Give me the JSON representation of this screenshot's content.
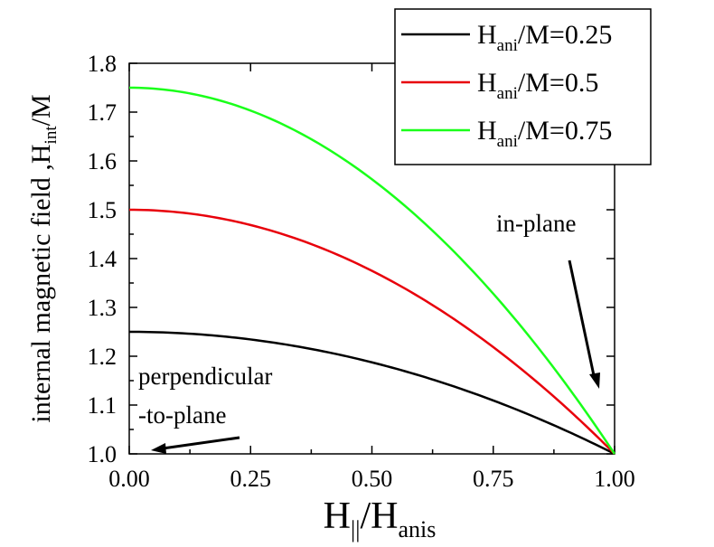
{
  "chart_data": {
    "type": "line",
    "xlabel": "H",
    "xlabel_sub": "||",
    "xlabel_mid": "/H",
    "xlabel_sub2": "anis",
    "ylabel_main": "internal magnetic field ,H",
    "ylabel_sub": "int",
    "ylabel_tail": "/M",
    "xlim": [
      0.0,
      1.0
    ],
    "ylim": [
      1.0,
      1.8
    ],
    "xticks": [
      "0.00",
      "0.25",
      "0.50",
      "0.75",
      "1.00"
    ],
    "yticks": [
      "1.0",
      "1.1",
      "1.2",
      "1.3",
      "1.4",
      "1.5",
      "1.6",
      "1.7",
      "1.8"
    ],
    "grid": false,
    "legend_position": "top-right",
    "series": [
      {
        "name": "0.25",
        "ani": 0.25,
        "color": "#000000",
        "x": [
          0,
          0.1,
          0.2,
          0.3,
          0.4,
          0.5,
          0.6,
          0.7,
          0.8,
          0.9,
          0.95,
          1.0
        ],
        "y": [
          1.25,
          1.2475,
          1.24,
          1.2275,
          1.21,
          1.1875,
          1.16,
          1.1275,
          1.09,
          1.0475,
          1.0244,
          1.0
        ]
      },
      {
        "name": "0.5",
        "ani": 0.5,
        "color": "#e8000b",
        "x": [
          0,
          0.1,
          0.2,
          0.3,
          0.4,
          0.5,
          0.6,
          0.7,
          0.8,
          0.9,
          0.95,
          1.0
        ],
        "y": [
          1.5,
          1.495,
          1.48,
          1.455,
          1.42,
          1.375,
          1.32,
          1.255,
          1.18,
          1.095,
          1.0488,
          1.0
        ]
      },
      {
        "name": "0.75",
        "ani": 0.75,
        "color": "#1aff1a",
        "x": [
          0,
          0.1,
          0.2,
          0.3,
          0.4,
          0.5,
          0.6,
          0.7,
          0.8,
          0.9,
          0.95,
          1.0
        ],
        "y": [
          1.75,
          1.7425,
          1.72,
          1.6825,
          1.63,
          1.5625,
          1.48,
          1.3825,
          1.27,
          1.1425,
          1.0731,
          1.0
        ]
      }
    ],
    "legend": {
      "prefix": "H",
      "sub": "ani",
      "mid": "/M="
    },
    "annotations": {
      "in_plane": "in-plane",
      "perp_line1": "perpendicular",
      "perp_line2": "-to-plane"
    }
  }
}
